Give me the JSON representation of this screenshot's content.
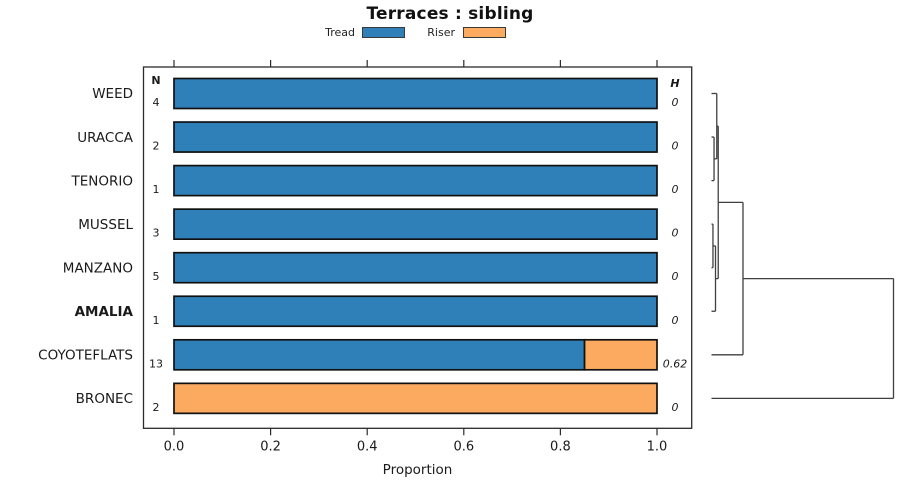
{
  "title": "Terraces : sibling",
  "legend": {
    "items": [
      {
        "label": "Tread",
        "color": "#2f80b9"
      },
      {
        "label": "Riser",
        "color": "#fbaa60"
      }
    ]
  },
  "colors": {
    "tread": "#2f80b9",
    "riser": "#fbaa60",
    "bar_border": "#111111",
    "frame": "#2b2b2b",
    "dendrogram_line": "#3f3f3f"
  },
  "chart_data": {
    "type": "bar",
    "orientation": "horizontal",
    "stacked": true,
    "title": "Terraces : sibling",
    "xlabel": "Proportion",
    "xlim": [
      0,
      1
    ],
    "xticks": [
      0.0,
      0.2,
      0.4,
      0.6,
      0.8,
      1.0
    ],
    "grid": false,
    "legend_position": "top",
    "categories": [
      "WEED",
      "URACCA",
      "TENORIO",
      "MUSSEL",
      "MANZANO",
      "AMALIA",
      "COYOTEFLATS",
      "BRONEC"
    ],
    "bold_categories": [
      "AMALIA"
    ],
    "series": [
      {
        "name": "Tread",
        "color": "#2f80b9",
        "values": [
          1,
          1,
          1,
          1,
          1,
          1,
          0.85,
          0
        ]
      },
      {
        "name": "Riser",
        "color": "#fbaa60",
        "values": [
          0,
          0,
          0,
          0,
          0,
          0,
          0.15,
          1
        ]
      }
    ],
    "n_column": {
      "header": "N",
      "values": [
        "4",
        "2",
        "1",
        "3",
        "5",
        "1",
        "13",
        "2"
      ]
    },
    "h_column": {
      "header": "H",
      "values": [
        "0",
        "0",
        "0",
        "0",
        "0",
        "0",
        "0.62",
        "0"
      ]
    },
    "dendrogram": {
      "leaf_order": [
        "WEED",
        "URACCA",
        "TENORIO",
        "MUSSEL",
        "MANZANO",
        "AMALIA",
        "COYOTEFLATS",
        "BRONEC"
      ],
      "merges": [
        {
          "a": "URACCA",
          "b": "TENORIO",
          "h": 0.014
        },
        {
          "a": "WEED",
          "b": "m0",
          "h": 0.029
        },
        {
          "a": "MUSSEL",
          "b": "MANZANO",
          "h": 0.008
        },
        {
          "a": "m2",
          "b": "AMALIA",
          "h": 0.022
        },
        {
          "a": "m1",
          "b": "m3",
          "h": 0.037
        },
        {
          "a": "m4",
          "b": "COYOTEFLATS",
          "h": 0.173
        },
        {
          "a": "m5",
          "b": "BRONEC",
          "h": 1.0
        }
      ]
    }
  }
}
